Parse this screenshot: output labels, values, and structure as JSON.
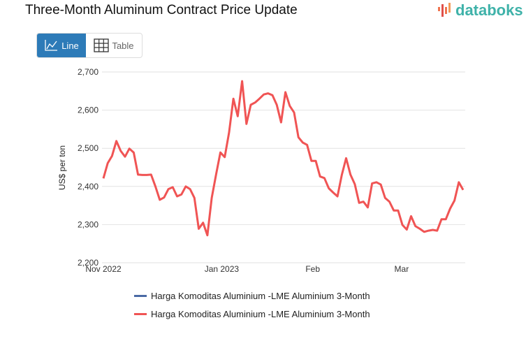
{
  "title": "Three-Month Aluminum Contract Price Update",
  "logo": {
    "text": "databoks"
  },
  "toggle": {
    "line_label": "Line",
    "table_label": "Table"
  },
  "colors": {
    "accent": "#2d7bb8",
    "series_1": "#4a6aa5",
    "series_2": "#f05454"
  },
  "chart_data": {
    "type": "line",
    "title": "Three-Month Aluminum Contract Price Update",
    "xlabel": "",
    "ylabel": "US$ per ton",
    "ylim": [
      2200,
      2700
    ],
    "yticks": [
      2200,
      2300,
      2400,
      2500,
      2600,
      2700
    ],
    "ytick_labels": [
      "2,200",
      "2,300",
      "2,400",
      "2,500",
      "2,600",
      "2,700"
    ],
    "xticks": [
      {
        "label": "Nov 2022",
        "index": 0
      },
      {
        "label": "Jan 2023",
        "index": 27.3
      },
      {
        "label": "Feb",
        "index": 48.3
      },
      {
        "label": "Mar",
        "index": 68.8
      }
    ],
    "grid": true,
    "legend_position": "bottom",
    "series": [
      {
        "name": "Harga Komoditas Aluminium -LME Aluminium 3-Month",
        "color": "#4a6aa5",
        "values": []
      },
      {
        "name": "Harga Komoditas Aluminium -LME Aluminium 3-Month",
        "color": "#f05454",
        "values": [
          2421,
          2461,
          2480,
          2519,
          2493,
          2478,
          2499,
          2489,
          2431,
          2430,
          2430,
          2431,
          2400,
          2365,
          2371,
          2393,
          2398,
          2374,
          2379,
          2400,
          2393,
          2370,
          2289,
          2305,
          2272,
          2370,
          2431,
          2489,
          2477,
          2541,
          2630,
          2584,
          2676,
          2564,
          2614,
          2620,
          2630,
          2641,
          2644,
          2639,
          2614,
          2568,
          2647,
          2611,
          2594,
          2529,
          2515,
          2509,
          2467,
          2467,
          2426,
          2422,
          2395,
          2384,
          2374,
          2430,
          2474,
          2431,
          2406,
          2357,
          2360,
          2345,
          2408,
          2411,
          2405,
          2370,
          2360,
          2337,
          2337,
          2299,
          2287,
          2322,
          2296,
          2289,
          2281,
          2284,
          2286,
          2284,
          2314,
          2314,
          2342,
          2363,
          2411,
          2391
        ]
      }
    ]
  }
}
